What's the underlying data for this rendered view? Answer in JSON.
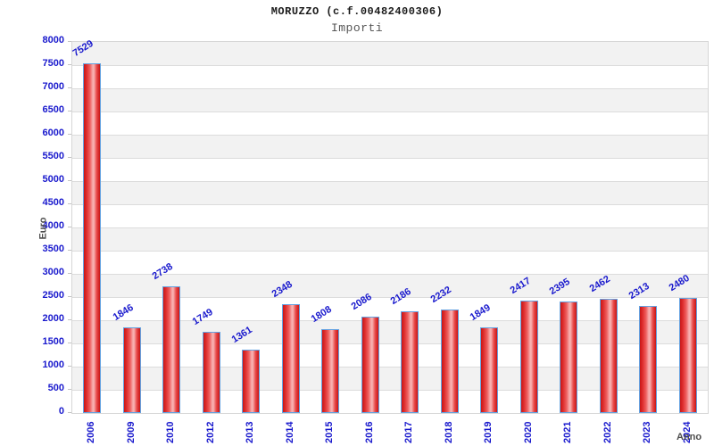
{
  "page": {
    "background": "#ffffff"
  },
  "chart": {
    "title": "MORUZZO (c.f.00482400306)",
    "subtitle": "Importi",
    "ylabel": "Euro",
    "xlabel": "Anno"
  },
  "chart_data": {
    "type": "bar",
    "title": "MORUZZO (c.f.00482400306)",
    "subtitle": "Importi",
    "xlabel": "Anno",
    "ylabel": "Euro",
    "categories": [
      "2006",
      "2009",
      "2010",
      "2012",
      "2013",
      "2014",
      "2015",
      "2016",
      "2017",
      "2018",
      "2019",
      "2020",
      "2021",
      "2022",
      "2023",
      "2024"
    ],
    "values": [
      7529,
      1846,
      2738,
      1749,
      1361,
      2348,
      1808,
      2086,
      2186,
      2232,
      1849,
      2417,
      2395,
      2462,
      2313,
      2480
    ],
    "ylim": [
      0,
      8000
    ],
    "ytick_step": 500,
    "grid": true,
    "legend": "none",
    "colors": {
      "bar_fill_main": "#e03030",
      "bar_fill_highlight": "#f8b0b0",
      "bar_border": "#64a2e1",
      "tick_text": "#1919cd",
      "value_text": "#1919cd",
      "axis_title_text": "#4d4d4d",
      "stripe": "#f2f2f2",
      "gridline": "#dcdcdc",
      "title_text": "#1a1a1a",
      "subtitle_text": "#555555"
    }
  }
}
